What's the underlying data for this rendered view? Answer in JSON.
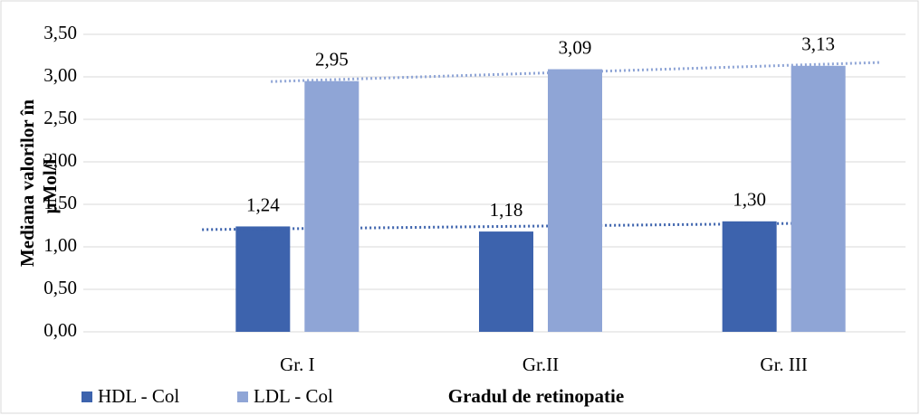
{
  "chart_data": {
    "type": "bar",
    "y_label": [
      "Mediana valorilor în",
      "µMol/L"
    ],
    "x_label": "Gradul de retinopatie",
    "categories": [
      "Gr. I",
      "Gr.II",
      "Gr. III"
    ],
    "series": [
      {
        "name": "HDL - Col",
        "color": "#3d63ad",
        "values": [
          1.24,
          1.18,
          1.3
        ],
        "value_labels": [
          "1,24",
          "1,18",
          "1,30"
        ],
        "trendline": true,
        "trendline_color": "#3d63ad"
      },
      {
        "name": "LDL - Col",
        "color": "#8fa5d6",
        "values": [
          2.95,
          3.09,
          3.13
        ],
        "value_labels": [
          "2,95",
          "3,09",
          "3,13"
        ],
        "trendline": true,
        "trendline_color": "#8fa5d6"
      }
    ],
    "ylim": [
      0,
      3.5
    ],
    "yticks": [
      {
        "value": 0,
        "label": "0,00"
      },
      {
        "value": 0.5,
        "label": "0,50"
      },
      {
        "value": 1,
        "label": "1,00"
      },
      {
        "value": 1.5,
        "label": "1,50"
      },
      {
        "value": 2,
        "label": "2,00"
      },
      {
        "value": 2.5,
        "label": "2,50"
      },
      {
        "value": 3,
        "label": "3,00"
      },
      {
        "value": 3.5,
        "label": "3,50"
      }
    ],
    "grid": true,
    "legend": "bottom-left"
  }
}
